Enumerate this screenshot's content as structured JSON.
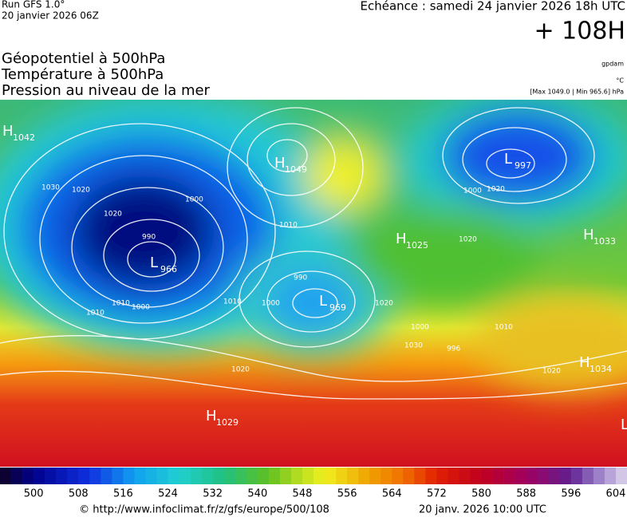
{
  "header": {
    "run": "Run GFS 1.0°",
    "run_date": "20 janvier 2026 06Z",
    "valid": "Echéance : samedi 24 janvier 2026 18h UTC",
    "lead": "+ 108H"
  },
  "legend": {
    "lines": [
      "Géopotentiel à 500hPa",
      "Température à 500hPa",
      "Pression au niveau de la mer"
    ],
    "unit_geo": "gpdam",
    "unit_temp": "°C",
    "extremes": "[Max 1049.0 | Min 965.6] hPa"
  },
  "centers": [
    {
      "type": "H",
      "value": 1042
    },
    {
      "type": "H",
      "value": 1049
    },
    {
      "type": "L",
      "value": 997
    },
    {
      "type": "H",
      "value": 1033
    },
    {
      "type": "H",
      "value": 1025
    },
    {
      "type": "L",
      "value": 966
    },
    {
      "type": "L",
      "value": 969
    },
    {
      "type": "H",
      "value": 1034
    },
    {
      "type": "H",
      "value": 1029
    },
    {
      "type": "L",
      "value": null
    }
  ],
  "isobar_labels": [
    "1020",
    "1000",
    "1030",
    "1020",
    "1010",
    "1000",
    "990",
    "1010",
    "1000",
    "1020",
    "1020",
    "1030",
    "1020",
    "1000",
    "1010",
    "1020",
    "990",
    "1010",
    "1020",
    "1010",
    "1000",
    "996"
  ],
  "colorbar": {
    "range": [
      494,
      606
    ],
    "ticks": [
      500,
      508,
      516,
      524,
      532,
      540,
      548,
      556,
      564,
      572,
      580,
      588,
      596,
      604
    ],
    "stops": [
      [
        494,
        "#100020"
      ],
      [
        500,
        "#00008b"
      ],
      [
        510,
        "#1030e0"
      ],
      [
        518,
        "#10a0f0"
      ],
      [
        526,
        "#20d0d0"
      ],
      [
        534,
        "#20c080"
      ],
      [
        542,
        "#60c020"
      ],
      [
        548,
        "#c0e020"
      ],
      [
        552,
        "#f0f020"
      ],
      [
        560,
        "#f0a000"
      ],
      [
        566,
        "#f07000"
      ],
      [
        572,
        "#e02000"
      ],
      [
        580,
        "#c00020"
      ],
      [
        588,
        "#a00060"
      ],
      [
        596,
        "#602090"
      ],
      [
        600,
        "#9070c0"
      ],
      [
        606,
        "#e0d8f0"
      ]
    ]
  },
  "footer": {
    "source": "© http://www.infoclimat.fr/z/gfs/europe/500/108",
    "generated": "20 janv. 2026 10:00 UTC"
  }
}
